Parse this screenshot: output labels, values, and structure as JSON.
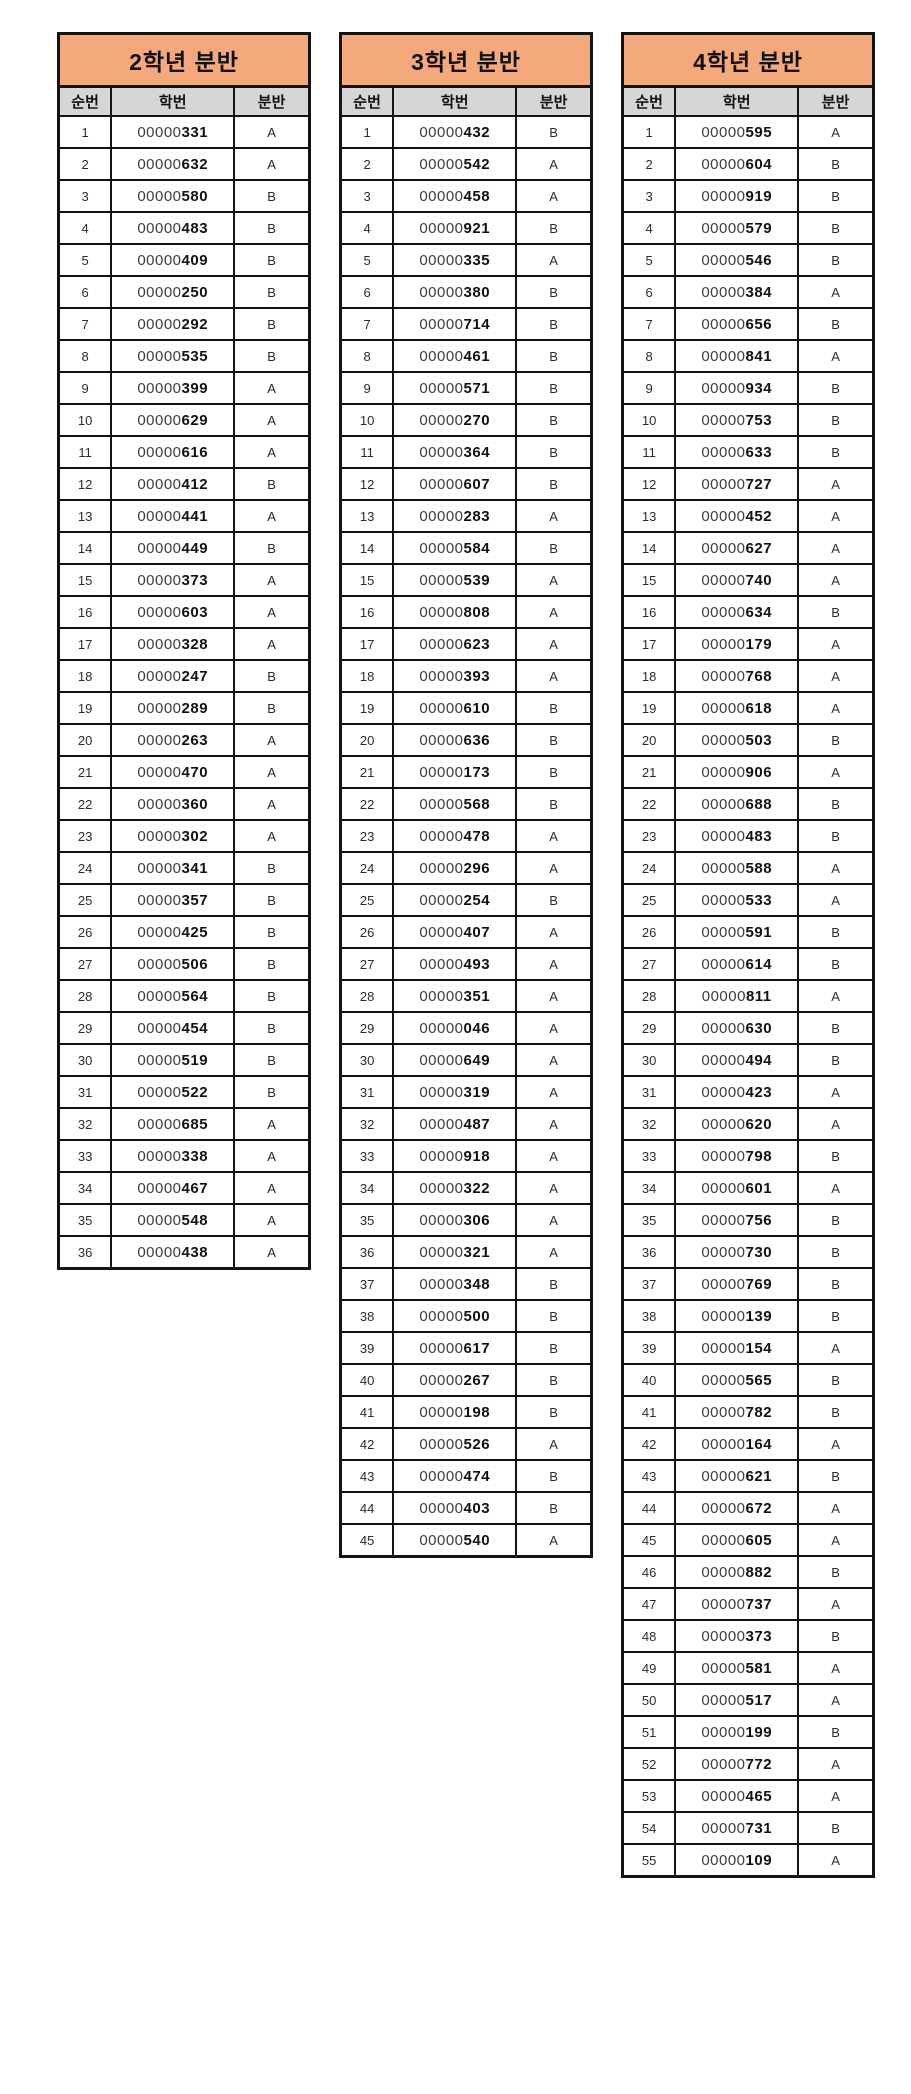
{
  "colors": {
    "title_bg": "#F4A97C",
    "header_bg": "#D6D6D6",
    "border": "#141414"
  },
  "id_prefix": "00000",
  "tables": [
    {
      "title": "2학년 분반",
      "columns": [
        "순번",
        "학번",
        "분반"
      ],
      "rows": [
        [
          1,
          "331",
          "A"
        ],
        [
          2,
          "632",
          "A"
        ],
        [
          3,
          "580",
          "B"
        ],
        [
          4,
          "483",
          "B"
        ],
        [
          5,
          "409",
          "B"
        ],
        [
          6,
          "250",
          "B"
        ],
        [
          7,
          "292",
          "B"
        ],
        [
          8,
          "535",
          "B"
        ],
        [
          9,
          "399",
          "A"
        ],
        [
          10,
          "629",
          "A"
        ],
        [
          11,
          "616",
          "A"
        ],
        [
          12,
          "412",
          "B"
        ],
        [
          13,
          "441",
          "A"
        ],
        [
          14,
          "449",
          "B"
        ],
        [
          15,
          "373",
          "A"
        ],
        [
          16,
          "603",
          "A"
        ],
        [
          17,
          "328",
          "A"
        ],
        [
          18,
          "247",
          "B"
        ],
        [
          19,
          "289",
          "B"
        ],
        [
          20,
          "263",
          "A"
        ],
        [
          21,
          "470",
          "A"
        ],
        [
          22,
          "360",
          "A"
        ],
        [
          23,
          "302",
          "A"
        ],
        [
          24,
          "341",
          "B"
        ],
        [
          25,
          "357",
          "B"
        ],
        [
          26,
          "425",
          "B"
        ],
        [
          27,
          "506",
          "B"
        ],
        [
          28,
          "564",
          "B"
        ],
        [
          29,
          "454",
          "B"
        ],
        [
          30,
          "519",
          "B"
        ],
        [
          31,
          "522",
          "B"
        ],
        [
          32,
          "685",
          "A"
        ],
        [
          33,
          "338",
          "A"
        ],
        [
          34,
          "467",
          "A"
        ],
        [
          35,
          "548",
          "A"
        ],
        [
          36,
          "438",
          "A"
        ]
      ]
    },
    {
      "title": "3학년 분반",
      "columns": [
        "순번",
        "학번",
        "분반"
      ],
      "rows": [
        [
          1,
          "432",
          "B"
        ],
        [
          2,
          "542",
          "A"
        ],
        [
          3,
          "458",
          "A"
        ],
        [
          4,
          "921",
          "B"
        ],
        [
          5,
          "335",
          "A"
        ],
        [
          6,
          "380",
          "B"
        ],
        [
          7,
          "714",
          "B"
        ],
        [
          8,
          "461",
          "B"
        ],
        [
          9,
          "571",
          "B"
        ],
        [
          10,
          "270",
          "B"
        ],
        [
          11,
          "364",
          "B"
        ],
        [
          12,
          "607",
          "B"
        ],
        [
          13,
          "283",
          "A"
        ],
        [
          14,
          "584",
          "B"
        ],
        [
          15,
          "539",
          "A"
        ],
        [
          16,
          "808",
          "A"
        ],
        [
          17,
          "623",
          "A"
        ],
        [
          18,
          "393",
          "A"
        ],
        [
          19,
          "610",
          "B"
        ],
        [
          20,
          "636",
          "B"
        ],
        [
          21,
          "173",
          "B"
        ],
        [
          22,
          "568",
          "B"
        ],
        [
          23,
          "478",
          "A"
        ],
        [
          24,
          "296",
          "A"
        ],
        [
          25,
          "254",
          "B"
        ],
        [
          26,
          "407",
          "A"
        ],
        [
          27,
          "493",
          "A"
        ],
        [
          28,
          "351",
          "A"
        ],
        [
          29,
          "046",
          "A"
        ],
        [
          30,
          "649",
          "A"
        ],
        [
          31,
          "319",
          "A"
        ],
        [
          32,
          "487",
          "A"
        ],
        [
          33,
          "918",
          "A"
        ],
        [
          34,
          "322",
          "A"
        ],
        [
          35,
          "306",
          "A"
        ],
        [
          36,
          "321",
          "A"
        ],
        [
          37,
          "348",
          "B"
        ],
        [
          38,
          "500",
          "B"
        ],
        [
          39,
          "617",
          "B"
        ],
        [
          40,
          "267",
          "B"
        ],
        [
          41,
          "198",
          "B"
        ],
        [
          42,
          "526",
          "A"
        ],
        [
          43,
          "474",
          "B"
        ],
        [
          44,
          "403",
          "B"
        ],
        [
          45,
          "540",
          "A"
        ]
      ]
    },
    {
      "title": "4학년 분반",
      "columns": [
        "순번",
        "학번",
        "분반"
      ],
      "rows": [
        [
          1,
          "595",
          "A"
        ],
        [
          2,
          "604",
          "B"
        ],
        [
          3,
          "919",
          "B"
        ],
        [
          4,
          "579",
          "B"
        ],
        [
          5,
          "546",
          "B"
        ],
        [
          6,
          "384",
          "A"
        ],
        [
          7,
          "656",
          "B"
        ],
        [
          8,
          "841",
          "A"
        ],
        [
          9,
          "934",
          "B"
        ],
        [
          10,
          "753",
          "B"
        ],
        [
          11,
          "633",
          "B"
        ],
        [
          12,
          "727",
          "A"
        ],
        [
          13,
          "452",
          "A"
        ],
        [
          14,
          "627",
          "A"
        ],
        [
          15,
          "740",
          "A"
        ],
        [
          16,
          "634",
          "B"
        ],
        [
          17,
          "179",
          "A"
        ],
        [
          18,
          "768",
          "A"
        ],
        [
          19,
          "618",
          "A"
        ],
        [
          20,
          "503",
          "B"
        ],
        [
          21,
          "906",
          "A"
        ],
        [
          22,
          "688",
          "B"
        ],
        [
          23,
          "483",
          "B"
        ],
        [
          24,
          "588",
          "A"
        ],
        [
          25,
          "533",
          "A"
        ],
        [
          26,
          "591",
          "B"
        ],
        [
          27,
          "614",
          "B"
        ],
        [
          28,
          "811",
          "A"
        ],
        [
          29,
          "630",
          "B"
        ],
        [
          30,
          "494",
          "B"
        ],
        [
          31,
          "423",
          "A"
        ],
        [
          32,
          "620",
          "A"
        ],
        [
          33,
          "798",
          "B"
        ],
        [
          34,
          "601",
          "A"
        ],
        [
          35,
          "756",
          "B"
        ],
        [
          36,
          "730",
          "B"
        ],
        [
          37,
          "769",
          "B"
        ],
        [
          38,
          "139",
          "B"
        ],
        [
          39,
          "154",
          "A"
        ],
        [
          40,
          "565",
          "B"
        ],
        [
          41,
          "782",
          "B"
        ],
        [
          42,
          "164",
          "A"
        ],
        [
          43,
          "621",
          "B"
        ],
        [
          44,
          "672",
          "A"
        ],
        [
          45,
          "605",
          "A"
        ],
        [
          46,
          "882",
          "B"
        ],
        [
          47,
          "737",
          "A"
        ],
        [
          48,
          "373",
          "B"
        ],
        [
          49,
          "581",
          "A"
        ],
        [
          50,
          "517",
          "A"
        ],
        [
          51,
          "199",
          "B"
        ],
        [
          52,
          "772",
          "A"
        ],
        [
          53,
          "465",
          "A"
        ],
        [
          54,
          "731",
          "B"
        ],
        [
          55,
          "109",
          "A"
        ]
      ]
    }
  ]
}
